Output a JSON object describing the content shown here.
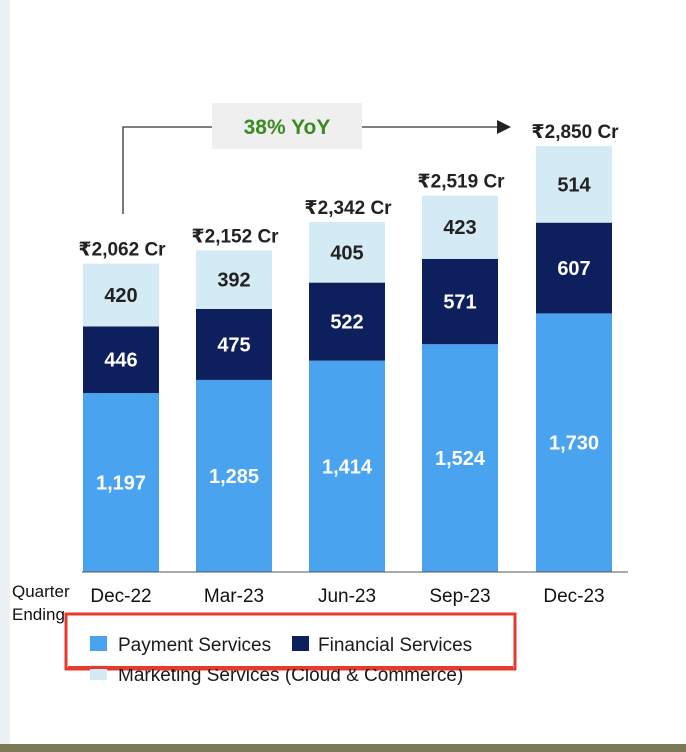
{
  "chart_data": {
    "type": "bar",
    "stacked": true,
    "categories": [
      "Dec-22",
      "Mar-23",
      "Jun-23",
      "Sep-23",
      "Dec-23"
    ],
    "series": [
      {
        "name": "Payment Services",
        "values": [
          1197,
          1285,
          1414,
          1524,
          1730
        ],
        "labels": [
          "1,197",
          "1,285",
          "1,414",
          "1,524",
          "1,730"
        ],
        "color": "#4aa3ee",
        "label_color": "#ffffff"
      },
      {
        "name": "Financial Services",
        "values": [
          446,
          475,
          522,
          571,
          607
        ],
        "labels": [
          "446",
          "475",
          "522",
          "571",
          "607"
        ],
        "color": "#0e1f5e",
        "label_color": "#ffffff"
      },
      {
        "name": "Marketing Services (Cloud & Commerce)",
        "values": [
          420,
          392,
          405,
          423,
          514
        ],
        "labels": [
          "420",
          "392",
          "405",
          "423",
          "514"
        ],
        "color": "#d4eaf5",
        "label_color": "#222222"
      }
    ],
    "totals": [
      "₹2,062 Cr",
      "₹2,152 Cr",
      "₹2,342 Cr",
      "₹2,519 Cr",
      "₹2,850 Cr"
    ],
    "xlabel": "Quarter Ending",
    "annotation": "38% YoY",
    "annotation_color": "#3c8a22",
    "legend_highlight_color": "#e63a2e",
    "ylim": [
      0,
      2850
    ]
  }
}
